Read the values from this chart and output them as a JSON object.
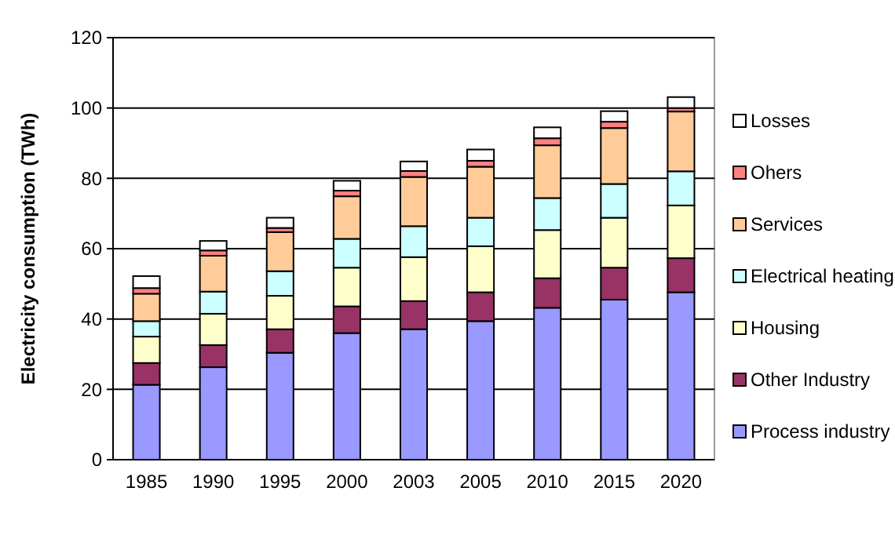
{
  "chart_data": {
    "type": "bar",
    "stacked": true,
    "ylabel": "Electricity consumption (TWh)",
    "categories": [
      "1985",
      "1990",
      "1995",
      "2000",
      "2003",
      "2005",
      "2010",
      "2015",
      "2020"
    ],
    "series": [
      {
        "name": "Process industry",
        "color": "#9999ff",
        "values": [
          21.3,
          26.3,
          30.4,
          36.0,
          37.1,
          39.4,
          43.2,
          45.5,
          47.6
        ]
      },
      {
        "name": "Other Industry",
        "color": "#993366",
        "values": [
          6.2,
          6.3,
          6.7,
          7.6,
          8.0,
          8.2,
          8.4,
          9.1,
          9.7
        ]
      },
      {
        "name": "Housing",
        "color": "#ffffcc",
        "values": [
          7.5,
          8.9,
          9.5,
          11.0,
          12.5,
          13.1,
          13.7,
          14.2,
          15.0
        ]
      },
      {
        "name": "Electrical heating",
        "color": "#ccffff",
        "values": [
          4.4,
          6.3,
          7.0,
          8.2,
          8.8,
          8.1,
          9.1,
          9.6,
          9.7
        ]
      },
      {
        "name": "Services",
        "color": "#ffcc99",
        "values": [
          7.8,
          10.2,
          11.1,
          12.1,
          14.0,
          14.5,
          15.0,
          15.9,
          17.0
        ]
      },
      {
        "name": "Ohers",
        "color": "#ff8080",
        "values": [
          1.6,
          1.5,
          1.2,
          1.6,
          1.7,
          1.7,
          2.0,
          1.8,
          1.0
        ]
      },
      {
        "name": "Losses",
        "color": "#ffffff",
        "values": [
          3.4,
          2.7,
          2.9,
          2.8,
          2.7,
          3.2,
          3.1,
          3.0,
          3.1
        ]
      }
    ],
    "ylim": [
      0,
      120
    ],
    "yticks": [
      0,
      20,
      40,
      60,
      80,
      100,
      120
    ],
    "grid": "y",
    "legend": "right"
  }
}
